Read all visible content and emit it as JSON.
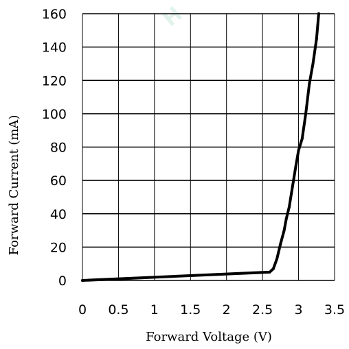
{
  "watermark": "H",
  "chart_data": {
    "type": "line",
    "title": "",
    "xlabel": "Forward Voltage  (V)",
    "ylabel": "Forward Current (mA)",
    "xlim": [
      0,
      3.5
    ],
    "ylim": [
      0,
      160
    ],
    "xticks": [
      "0",
      "0.5",
      "1",
      "1.5",
      "2",
      "2.5",
      "3",
      "3.5"
    ],
    "yticks": [
      "0",
      "20",
      "40",
      "60",
      "80",
      "100",
      "120",
      "140",
      "160"
    ],
    "grid": true,
    "series": [
      {
        "color": "#000000",
        "x": [
          0,
          2.6,
          2.65,
          2.7,
          2.75,
          2.8,
          2.83,
          2.87,
          2.9,
          2.93,
          2.96,
          3.0,
          3.05,
          3.1,
          3.15,
          3.2,
          3.25,
          3.28
        ],
        "y": [
          0,
          5,
          7,
          13,
          22,
          30,
          37,
          44,
          52,
          60,
          68,
          78,
          85,
          100,
          118,
          130,
          145,
          160
        ]
      }
    ]
  }
}
